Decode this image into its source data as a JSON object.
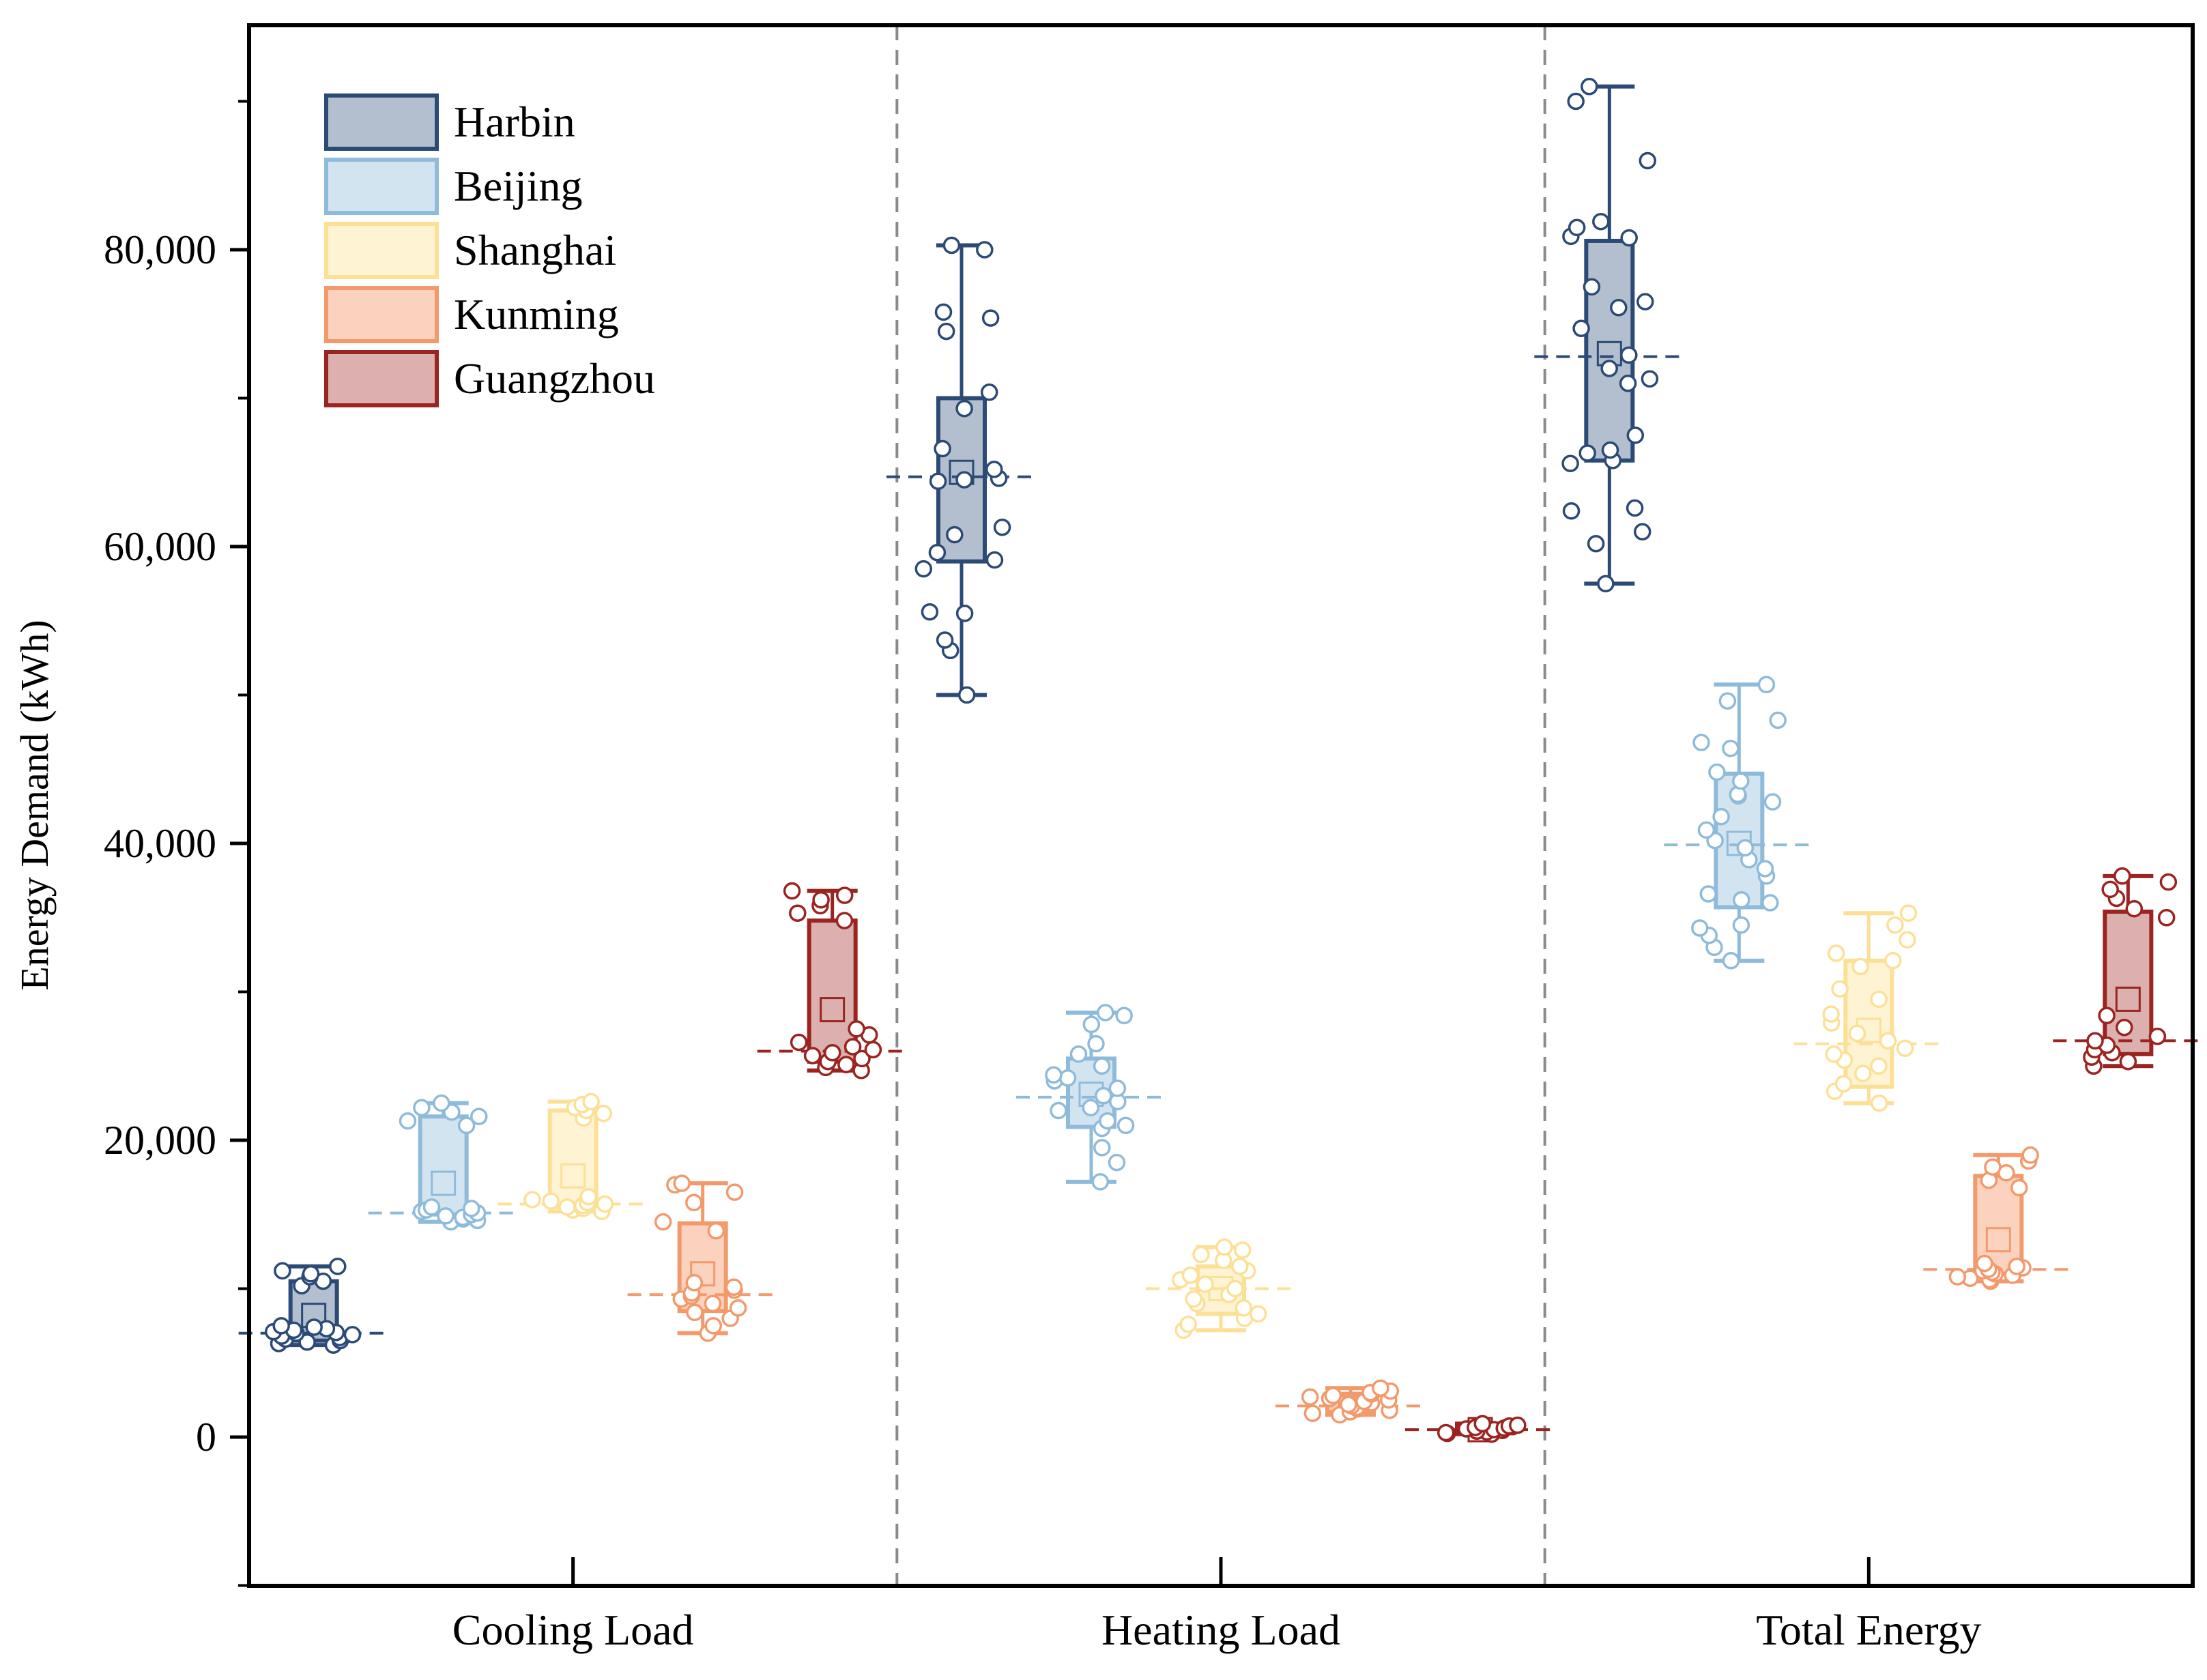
{
  "chart_data": {
    "type": "box",
    "ylabel": "Energy Demand (kWh)",
    "ylim": [
      -10000,
      95000
    ],
    "yticks": [
      0,
      20000,
      40000,
      60000,
      80000
    ],
    "ytick_labels": [
      "0",
      "20,000",
      "40,000",
      "60,000",
      "80,000"
    ],
    "categories": [
      "Cooling Load",
      "Heating Load",
      "Total Energy"
    ],
    "legend_position": "top-left",
    "series": [
      {
        "name": "Harbin",
        "color": "#2c4a76",
        "fill": "#b3bfcf",
        "stats": [
          {
            "min": 6200,
            "q1": 6500,
            "median": 7000,
            "q3": 10500,
            "max": 11500,
            "mean": 8200,
            "points": [
              6200,
              6300,
              6400,
              6500,
              6600,
              6700,
              6800,
              6900,
              7000,
              7050,
              7100,
              7200,
              7300,
              7400,
              7500,
              10200,
              10500,
              10800,
              11000,
              11200,
              11500
            ]
          },
          {
            "min": 50000,
            "q1": 59000,
            "median": 64700,
            "q3": 70000,
            "max": 80300,
            "mean": 65000,
            "points": [
              50000,
              53000,
              53700,
              55500,
              55600,
              58500,
              59100,
              59600,
              60800,
              61300,
              64400,
              64500,
              64600,
              65200,
              66600,
              69300,
              70400,
              74500,
              75400,
              75800,
              80000,
              80300
            ]
          },
          {
            "min": 57500,
            "q1": 65800,
            "median": 72800,
            "q3": 80600,
            "max": 91000,
            "mean": 73000,
            "points": [
              57500,
              60200,
              61000,
              62400,
              62600,
              65600,
              65800,
              66300,
              66500,
              67500,
              71000,
              71300,
              72000,
              72900,
              74700,
              76100,
              76500,
              77500,
              80800,
              80900,
              81500,
              81900,
              86000,
              90000,
              91000
            ]
          }
        ]
      },
      {
        "name": "Beijing",
        "color": "#8fbbdb",
        "fill": "#d3e4f1",
        "stats": [
          {
            "min": 14500,
            "q1": 15000,
            "median": 15100,
            "q3": 21600,
            "max": 22500,
            "mean": 17100,
            "points": [
              14500,
              14600,
              14700,
              14800,
              14900,
              15000,
              15100,
              15200,
              15300,
              15400,
              15500,
              21000,
              21300,
              21600,
              21900,
              22200,
              22500
            ]
          },
          {
            "min": 17200,
            "q1": 20900,
            "median": 22900,
            "q3": 25500,
            "max": 28600,
            "mean": 23100,
            "points": [
              17200,
              18500,
              19500,
              20800,
              21000,
              21300,
              22000,
              22200,
              22600,
              23000,
              23500,
              24000,
              24200,
              24400,
              25000,
              25800,
              26500,
              27800,
              28400,
              28600
            ]
          },
          {
            "min": 32100,
            "q1": 35700,
            "median": 39900,
            "q3": 44700,
            "max": 50700,
            "mean": 40000,
            "points": [
              32100,
              33000,
              33800,
              34300,
              34500,
              36000,
              36200,
              36600,
              37800,
              38300,
              38900,
              39700,
              40200,
              40900,
              41800,
              42800,
              43200,
              43300,
              44200,
              44800,
              46400,
              46800,
              48300,
              49600,
              50700
            ]
          }
        ]
      },
      {
        "name": "Shanghai",
        "color": "#fce096",
        "fill": "#fef3d2",
        "stats": [
          {
            "min": 15200,
            "q1": 15500,
            "median": 15700,
            "q3": 22000,
            "max": 22600,
            "mean": 17600,
            "points": [
              15200,
              15300,
              15400,
              15500,
              15600,
              15700,
              15800,
              15900,
              16000,
              16200,
              21500,
              21800,
              22000,
              22200,
              22400,
              22600
            ]
          },
          {
            "min": 7200,
            "q1": 8300,
            "median": 10000,
            "q3": 11500,
            "max": 12800,
            "mean": 10000,
            "points": [
              7200,
              7600,
              8000,
              8300,
              8700,
              9000,
              9300,
              9600,
              10000,
              10300,
              10600,
              10900,
              11200,
              11500,
              11900,
              12300,
              12600,
              12800
            ]
          },
          {
            "min": 22500,
            "q1": 23600,
            "median": 26500,
            "q3": 32100,
            "max": 35300,
            "mean": 27400,
            "points": [
              22500,
              23300,
              23800,
              24500,
              25000,
              25400,
              25800,
              26200,
              26700,
              27200,
              27900,
              28500,
              29500,
              30200,
              31700,
              32100,
              32600,
              33500,
              34500,
              35300
            ]
          }
        ]
      },
      {
        "name": "Kunming",
        "color": "#f39a6c",
        "fill": "#fbd2bd",
        "stats": [
          {
            "min": 7000,
            "q1": 8500,
            "median": 9600,
            "q3": 14400,
            "max": 17100,
            "mean": 11000,
            "points": [
              7000,
              7500,
              8000,
              8400,
              8700,
              9000,
              9300,
              9500,
              9700,
              9900,
              10100,
              10400,
              13900,
              14500,
              15800,
              16500,
              17000,
              17100
            ]
          },
          {
            "min": 1500,
            "q1": 1700,
            "median": 2100,
            "q3": 2800,
            "max": 3300,
            "mean": 2200,
            "points": [
              1500,
              1600,
              1700,
              1800,
              1900,
              2000,
              2100,
              2200,
              2300,
              2400,
              2500,
              2600,
              2700,
              2800,
              2900,
              3000,
              3100,
              3300
            ]
          },
          {
            "min": 10500,
            "q1": 11000,
            "median": 11300,
            "q3": 17600,
            "max": 19000,
            "mean": 13300,
            "points": [
              10500,
              10600,
              10700,
              10800,
              10900,
              11000,
              11100,
              11200,
              11300,
              11400,
              11500,
              11700,
              16800,
              17300,
              17800,
              18200,
              18600,
              19000
            ]
          }
        ]
      },
      {
        "name": "Guangzhou",
        "color": "#9b2320",
        "fill": "#dbb0ae",
        "stats": [
          {
            "min": 24700,
            "q1": 25300,
            "median": 26000,
            "q3": 34800,
            "max": 36800,
            "mean": 28800,
            "points": [
              24700,
              24900,
              25100,
              25300,
              25500,
              25700,
              25900,
              26100,
              26300,
              26600,
              27100,
              27500,
              34800,
              35300,
              35800,
              36200,
              36500,
              36800
            ]
          },
          {
            "min": 200,
            "q1": 300,
            "median": 500,
            "q3": 700,
            "max": 900,
            "mean": 500,
            "points": [
              200,
              250,
              300,
              350,
              400,
              450,
              500,
              550,
              600,
              650,
              700,
              750,
              800,
              900
            ]
          },
          {
            "min": 25000,
            "q1": 25800,
            "median": 26700,
            "q3": 35400,
            "max": 37800,
            "mean": 29500,
            "points": [
              25000,
              25300,
              25600,
              25900,
              26100,
              26400,
              26700,
              27000,
              27600,
              28400,
              35000,
              35600,
              36300,
              36900,
              37400,
              37800
            ]
          }
        ]
      }
    ]
  }
}
